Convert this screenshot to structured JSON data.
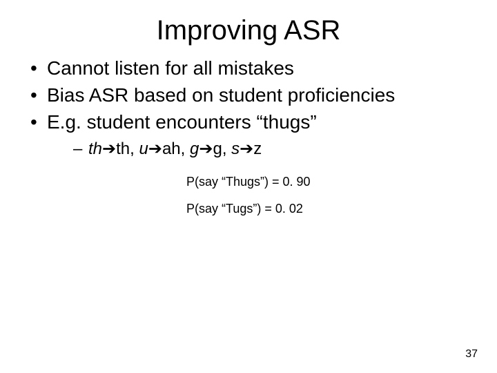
{
  "title": "Improving ASR",
  "bullets": {
    "b1": "Cannot listen for all mistakes",
    "b2": "Bias ASR based on student proficiencies",
    "b3": "E.g. student encounters “thugs”"
  },
  "sub": {
    "th_src": "th",
    "th_dst": "th",
    "u_src": "u",
    "u_dst": "ah",
    "g_src": "g",
    "g_dst": "g",
    "s_src": "s",
    "s_dst": "z"
  },
  "arrow_glyph": "➔",
  "prob": {
    "line1": "P(say “Thugs”) = 0. 90",
    "line2": "P(say “Tugs”) = 0. 02"
  },
  "page_number": "37",
  "style": {
    "background": "#ffffff",
    "text_color": "#000000",
    "font_family": "Arial",
    "title_fontsize": 40,
    "body_fontsize": 28,
    "sub_fontsize": 24,
    "prob_fontsize": 18,
    "pagenum_fontsize": 16
  }
}
